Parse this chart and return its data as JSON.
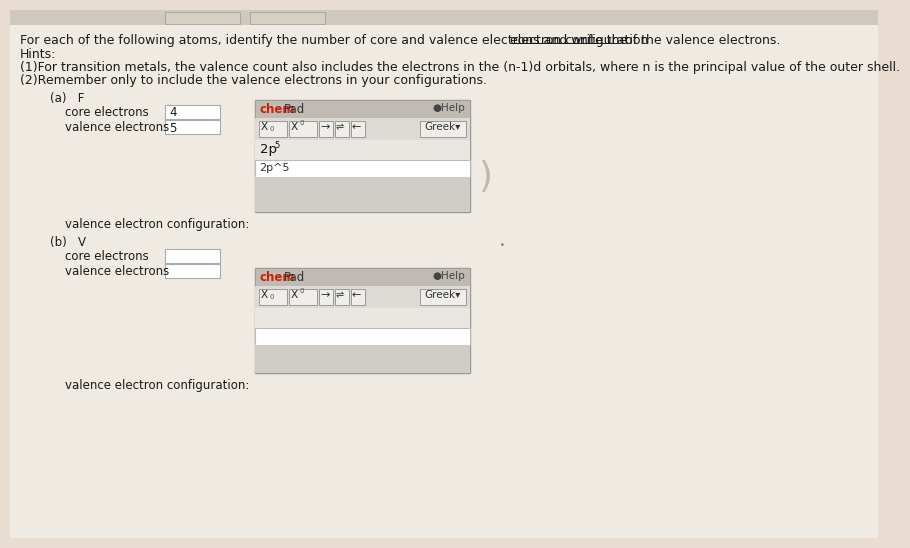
{
  "bg_color": "#e8ddd0",
  "text_color": "#1a1a1a",
  "title_part1": "For each of the following atoms, identify the number of core and valence electrons and write the ",
  "title_part2": "electron configuration",
  "title_part3": " of the valence electrons.",
  "hints_line0": "Hints:",
  "hints_line1": "(1)For transition metals, the valence count also includes the electrons in the (n-1)d orbitals, where n is the principal value of the outer shell.",
  "hints_line2": "(2)Remember only to include the valence electrons in your configurations.",
  "part_a_label": "(a)   F",
  "part_a_core_label": "core electrons",
  "part_a_core_value": "4",
  "part_a_valence_label": "valence electrons",
  "part_a_valence_value": "5",
  "part_b_label": "(b)   V",
  "part_b_core_label": "core electrons",
  "part_b_valence_label": "valence electrons",
  "valence_config_label": "valence electron configuration:",
  "chempad_label_chem": "chem",
  "chempad_label_pad": "Pad",
  "help_label": "●Help",
  "greek_label": "Greek▾",
  "display_math_base": "2p",
  "display_math_exp": "5",
  "input_text": "2p^5",
  "dot_text": "•",
  "box_bg": "#ffffff",
  "box_border": "#aaaaaa",
  "chempad_bg": "#d8d4ce",
  "chempad_header_bg": "#c0bab4",
  "chempad_toolbar_bg": "#dedad4",
  "chempad_display_bg": "#eae6e0",
  "chempad_input_bg": "#ffffff",
  "chempad_bottom_bg": "#d0ccc6",
  "chem_color": "#cc2200",
  "pad_color": "#333333",
  "help_color": "#333333",
  "toolbar_btn_bg": "#f0eeea",
  "toolbar_btn_border": "#999999",
  "top_btn_bg": "#d8d0c4",
  "top_btn_border": "#aaaaaa",
  "font_size_title": 9.0,
  "font_size_body": 8.5,
  "font_size_small": 7.5,
  "font_size_tiny": 6.5
}
